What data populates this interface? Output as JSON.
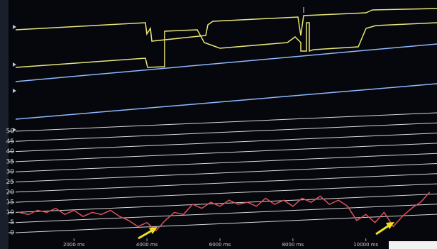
{
  "chart_data": {
    "type": "line",
    "x": [
      500,
      750,
      1000,
      1250,
      1500,
      1750,
      2000,
      2250,
      2500,
      2750,
      3000,
      3250,
      3500,
      3750,
      4000,
      4250,
      4500,
      4750,
      5000,
      5250,
      5500,
      5750,
      6000,
      6250,
      6500,
      6750,
      7000,
      7250,
      7500,
      7750,
      8000,
      8250,
      8500,
      8750,
      9000,
      9250,
      9500,
      9750,
      10000,
      10250,
      10500,
      10750,
      11000,
      11250,
      11500,
      11750
    ],
    "series": [
      {
        "color": "#e0505a",
        "values": [
          10,
          9,
          11,
          10,
          12,
          9,
          11,
          8,
          10,
          9,
          11,
          8,
          6,
          3,
          5,
          1,
          6,
          10,
          9,
          14,
          12,
          15,
          13,
          16,
          14,
          15,
          13,
          17,
          14,
          16,
          13,
          17,
          15,
          18,
          14,
          16,
          13,
          6,
          9,
          5,
          10,
          3,
          8,
          12,
          15,
          20
        ]
      }
    ],
    "xlim": [
      400,
      11950
    ],
    "xticks": [
      {
        "value": 2000,
        "label": "2000 ms"
      },
      {
        "value": 4000,
        "label": "4000 ms"
      },
      {
        "value": 6000,
        "label": "6000 ms"
      },
      {
        "value": 8000,
        "label": "8000 ms"
      },
      {
        "value": 10000,
        "label": "10000 ms"
      }
    ],
    "ylim": [
      0,
      50
    ],
    "yticks": [
      0,
      5,
      10,
      15,
      20,
      25,
      30,
      35,
      40,
      45,
      50
    ],
    "grid": true
  }
}
